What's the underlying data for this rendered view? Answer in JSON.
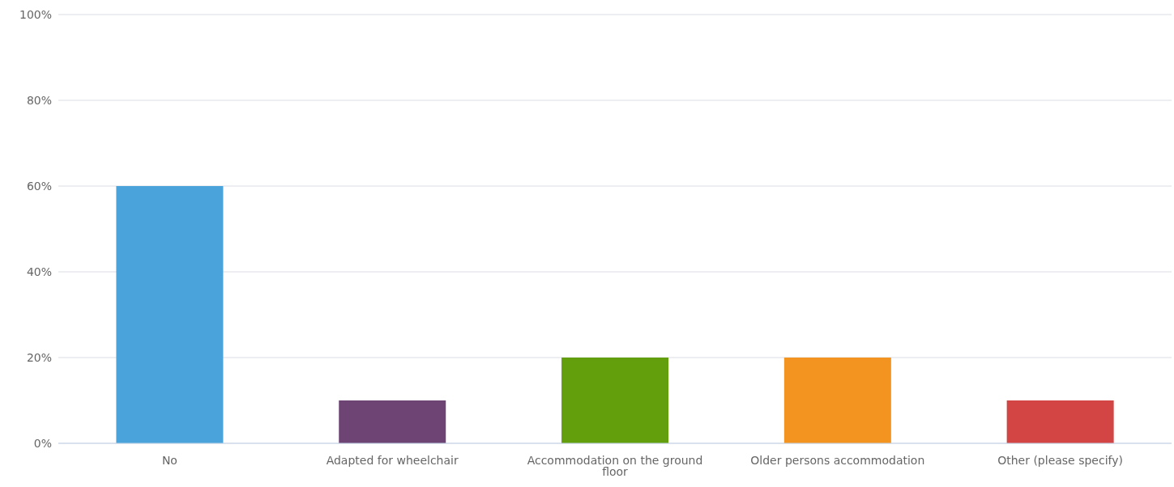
{
  "chart_data": {
    "type": "bar",
    "categories": [
      "No",
      "Adapted for wheelchair",
      "Accommodation on the ground floor",
      "Older persons accommodation",
      "Other (please specify)"
    ],
    "values": [
      60,
      10,
      20,
      20,
      10
    ],
    "colors": [
      "#4aa3db",
      "#6d4474",
      "#639f0c",
      "#f39320",
      "#d34444"
    ],
    "ylim": [
      0,
      100
    ],
    "yticks": [
      {
        "value": 0,
        "label": "0%"
      },
      {
        "value": 20,
        "label": "20%"
      },
      {
        "value": 40,
        "label": "40%"
      },
      {
        "value": 60,
        "label": "60%"
      },
      {
        "value": 80,
        "label": "80%"
      },
      {
        "value": 100,
        "label": "100%"
      }
    ],
    "grid": "y"
  }
}
